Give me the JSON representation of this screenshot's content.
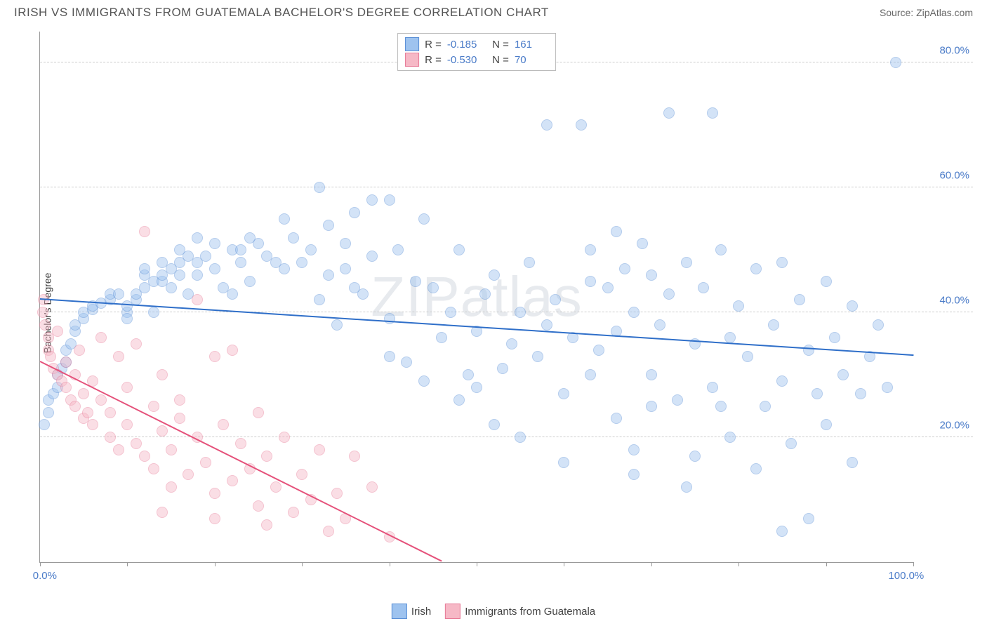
{
  "header": {
    "title": "IRISH VS IMMIGRANTS FROM GUATEMALA BACHELOR'S DEGREE CORRELATION CHART",
    "source_prefix": "Source: ",
    "source_name": "ZipAtlas.com"
  },
  "watermark": "ZIPatlas",
  "chart": {
    "type": "scatter",
    "ylabel": "Bachelor's Degree",
    "background_color": "#ffffff",
    "grid_color": "#cccccc",
    "axis_color": "#999999",
    "tick_label_color": "#4a7bc8",
    "xlim": [
      0,
      100
    ],
    "ylim": [
      0,
      85
    ],
    "xticks": [
      0,
      10,
      20,
      30,
      40,
      50,
      60,
      70,
      80,
      90,
      100
    ],
    "xtick_labels": {
      "0": "0.0%",
      "100": "100.0%"
    },
    "yticks": [
      20,
      40,
      60,
      80
    ],
    "ytick_labels": {
      "20": "20.0%",
      "40": "40.0%",
      "60": "60.0%",
      "80": "80.0%"
    },
    "point_radius": 8,
    "point_opacity": 0.45,
    "series": [
      {
        "name": "Irish",
        "color_fill": "#9ec3ef",
        "color_stroke": "#5a8fd6",
        "line_color": "#2f6fc9",
        "R": "-0.185",
        "N": "161",
        "trend": {
          "x1": 0,
          "y1": 42,
          "x2": 100,
          "y2": 33
        },
        "points": [
          [
            0.5,
            22
          ],
          [
            1,
            24
          ],
          [
            1,
            26
          ],
          [
            1.5,
            27
          ],
          [
            2,
            28
          ],
          [
            2,
            30
          ],
          [
            2.5,
            31
          ],
          [
            3,
            32
          ],
          [
            3,
            34
          ],
          [
            3.5,
            35
          ],
          [
            4,
            37
          ],
          [
            4,
            38
          ],
          [
            5,
            39
          ],
          [
            5,
            40
          ],
          [
            6,
            40.5
          ],
          [
            6,
            41
          ],
          [
            7,
            41.5
          ],
          [
            8,
            42
          ],
          [
            8,
            43
          ],
          [
            9,
            43
          ],
          [
            10,
            40
          ],
          [
            10,
            41
          ],
          [
            11,
            42
          ],
          [
            11,
            43
          ],
          [
            12,
            44
          ],
          [
            12,
            46
          ],
          [
            13,
            40
          ],
          [
            13,
            45
          ],
          [
            14,
            45
          ],
          [
            14,
            46
          ],
          [
            15,
            44
          ],
          [
            15,
            47
          ],
          [
            16,
            46
          ],
          [
            16,
            48
          ],
          [
            17,
            43
          ],
          [
            17,
            49
          ],
          [
            18,
            46
          ],
          [
            18,
            48
          ],
          [
            19,
            49
          ],
          [
            20,
            47
          ],
          [
            21,
            44
          ],
          [
            22,
            50
          ],
          [
            22,
            43
          ],
          [
            23,
            48
          ],
          [
            23,
            50
          ],
          [
            24,
            45
          ],
          [
            25,
            51
          ],
          [
            26,
            49
          ],
          [
            27,
            48
          ],
          [
            28,
            55
          ],
          [
            29,
            52
          ],
          [
            30,
            48
          ],
          [
            31,
            50
          ],
          [
            32,
            60
          ],
          [
            33,
            46
          ],
          [
            33,
            54
          ],
          [
            34,
            38
          ],
          [
            35,
            51
          ],
          [
            35,
            47
          ],
          [
            36,
            56
          ],
          [
            37,
            43
          ],
          [
            38,
            58
          ],
          [
            38,
            49
          ],
          [
            40,
            39
          ],
          [
            40,
            33
          ],
          [
            41,
            50
          ],
          [
            42,
            32
          ],
          [
            43,
            45
          ],
          [
            44,
            29
          ],
          [
            45,
            44
          ],
          [
            46,
            36
          ],
          [
            47,
            40
          ],
          [
            48,
            50
          ],
          [
            49,
            30
          ],
          [
            50,
            37
          ],
          [
            50,
            28
          ],
          [
            51,
            43
          ],
          [
            52,
            46
          ],
          [
            53,
            31
          ],
          [
            54,
            35
          ],
          [
            55,
            40
          ],
          [
            55,
            20
          ],
          [
            56,
            48
          ],
          [
            57,
            33
          ],
          [
            58,
            38
          ],
          [
            58,
            70
          ],
          [
            59,
            42
          ],
          [
            60,
            27
          ],
          [
            61,
            36
          ],
          [
            62,
            70
          ],
          [
            63,
            30
          ],
          [
            63,
            50
          ],
          [
            64,
            34
          ],
          [
            65,
            44
          ],
          [
            66,
            23
          ],
          [
            66,
            37
          ],
          [
            67,
            47
          ],
          [
            68,
            40
          ],
          [
            68,
            18
          ],
          [
            69,
            51
          ],
          [
            70,
            30
          ],
          [
            70,
            25
          ],
          [
            71,
            38
          ],
          [
            72,
            72
          ],
          [
            72,
            43
          ],
          [
            73,
            26
          ],
          [
            74,
            48
          ],
          [
            75,
            35
          ],
          [
            75,
            17
          ],
          [
            76,
            44
          ],
          [
            77,
            72
          ],
          [
            77,
            28
          ],
          [
            78,
            50
          ],
          [
            79,
            36
          ],
          [
            79,
            20
          ],
          [
            80,
            41
          ],
          [
            81,
            33
          ],
          [
            82,
            47
          ],
          [
            82,
            15
          ],
          [
            83,
            25
          ],
          [
            84,
            38
          ],
          [
            85,
            48
          ],
          [
            85,
            29
          ],
          [
            86,
            19
          ],
          [
            87,
            42
          ],
          [
            88,
            34
          ],
          [
            88,
            7
          ],
          [
            89,
            27
          ],
          [
            90,
            45
          ],
          [
            90,
            22
          ],
          [
            91,
            36
          ],
          [
            92,
            30
          ],
          [
            93,
            41
          ],
          [
            93,
            16
          ],
          [
            94,
            27
          ],
          [
            95,
            33
          ],
          [
            96,
            38
          ],
          [
            97,
            28
          ],
          [
            98,
            80
          ],
          [
            85,
            5
          ],
          [
            74,
            12
          ],
          [
            68,
            14
          ],
          [
            60,
            16
          ],
          [
            63,
            45
          ],
          [
            66,
            53
          ],
          [
            70,
            46
          ],
          [
            52,
            22
          ],
          [
            48,
            26
          ],
          [
            44,
            55
          ],
          [
            40,
            58
          ],
          [
            36,
            44
          ],
          [
            32,
            42
          ],
          [
            28,
            47
          ],
          [
            24,
            52
          ],
          [
            20,
            51
          ],
          [
            18,
            52
          ],
          [
            16,
            50
          ],
          [
            14,
            48
          ],
          [
            12,
            47
          ],
          [
            10,
            39
          ],
          [
            78,
            25
          ]
        ]
      },
      {
        "name": "Immigrants from Guatemala",
        "color_fill": "#f6b8c6",
        "color_stroke": "#e77a97",
        "line_color": "#e5517a",
        "R": "-0.530",
        "N": "70",
        "trend": {
          "x1": 0,
          "y1": 32,
          "x2": 46,
          "y2": 0
        },
        "points": [
          [
            0.4,
            42
          ],
          [
            0.3,
            40
          ],
          [
            0.6,
            38
          ],
          [
            1,
            36
          ],
          [
            1,
            34
          ],
          [
            1.2,
            33
          ],
          [
            1.5,
            31
          ],
          [
            2,
            30
          ],
          [
            2,
            37
          ],
          [
            2.5,
            29
          ],
          [
            3,
            28
          ],
          [
            3,
            32
          ],
          [
            3.5,
            26
          ],
          [
            4,
            30
          ],
          [
            4,
            25
          ],
          [
            4.5,
            34
          ],
          [
            5,
            27
          ],
          [
            5,
            23
          ],
          [
            5.5,
            24
          ],
          [
            6,
            29
          ],
          [
            6,
            22
          ],
          [
            7,
            26
          ],
          [
            7,
            36
          ],
          [
            8,
            24
          ],
          [
            8,
            20
          ],
          [
            9,
            33
          ],
          [
            9,
            18
          ],
          [
            10,
            22
          ],
          [
            10,
            28
          ],
          [
            11,
            19
          ],
          [
            11,
            35
          ],
          [
            12,
            53
          ],
          [
            12,
            17
          ],
          [
            13,
            25
          ],
          [
            13,
            15
          ],
          [
            14,
            21
          ],
          [
            14,
            30
          ],
          [
            15,
            18
          ],
          [
            15,
            12
          ],
          [
            16,
            23
          ],
          [
            16,
            26
          ],
          [
            17,
            14
          ],
          [
            18,
            20
          ],
          [
            18,
            42
          ],
          [
            19,
            16
          ],
          [
            20,
            33
          ],
          [
            20,
            11
          ],
          [
            21,
            22
          ],
          [
            22,
            13
          ],
          [
            22,
            34
          ],
          [
            23,
            19
          ],
          [
            24,
            15
          ],
          [
            25,
            24
          ],
          [
            25,
            9
          ],
          [
            26,
            17
          ],
          [
            27,
            12
          ],
          [
            28,
            20
          ],
          [
            29,
            8
          ],
          [
            30,
            14
          ],
          [
            31,
            10
          ],
          [
            32,
            18
          ],
          [
            34,
            11
          ],
          [
            35,
            7
          ],
          [
            36,
            17
          ],
          [
            38,
            12
          ],
          [
            40,
            4
          ],
          [
            33,
            5
          ],
          [
            26,
            6
          ],
          [
            20,
            7
          ],
          [
            14,
            8
          ]
        ]
      }
    ]
  },
  "legend": {
    "items": [
      {
        "label": "Irish",
        "fill": "#9ec3ef",
        "stroke": "#5a8fd6"
      },
      {
        "label": "Immigrants from Guatemala",
        "fill": "#f6b8c6",
        "stroke": "#e77a97"
      }
    ]
  }
}
